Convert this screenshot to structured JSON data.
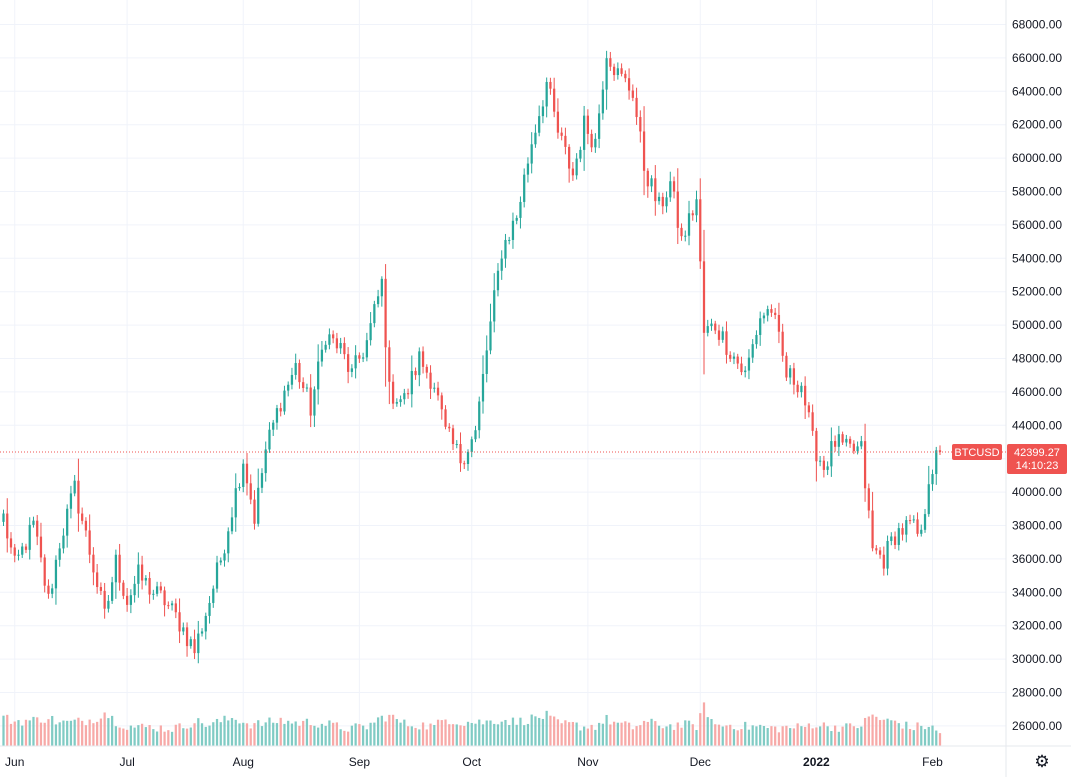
{
  "chart_data": {
    "type": "candlestick",
    "symbol": "BTCUSD",
    "interval": "daily",
    "last_price": "42399.27",
    "countdown": "14:10:23",
    "ylim": [
      24000,
      70000
    ],
    "y_ticks": [
      "26000.00",
      "28000.00",
      "30000.00",
      "32000.00",
      "34000.00",
      "36000.00",
      "38000.00",
      "40000.00",
      "42000.00",
      "44000.00",
      "46000.00",
      "48000.00",
      "50000.00",
      "52000.00",
      "54000.00",
      "56000.00",
      "58000.00",
      "60000.00",
      "62000.00",
      "64000.00",
      "66000.00",
      "68000.00"
    ],
    "x_ticks": [
      {
        "label": "Jun",
        "index": 3
      },
      {
        "label": "Jul",
        "index": 33
      },
      {
        "label": "Aug",
        "index": 64
      },
      {
        "label": "Sep",
        "index": 95
      },
      {
        "label": "Oct",
        "index": 125
      },
      {
        "label": "Nov",
        "index": 156
      },
      {
        "label": "Dec",
        "index": 186
      },
      {
        "label": "2022",
        "index": 217,
        "bold": true
      },
      {
        "label": "Feb",
        "index": 248
      }
    ],
    "anchors": [
      [
        0,
        38500,
        2.6
      ],
      [
        3,
        35500,
        2.2
      ],
      [
        8,
        38000,
        2.3
      ],
      [
        12,
        33500,
        2.6
      ],
      [
        15,
        37000,
        2.0
      ],
      [
        19,
        40200,
        2.1
      ],
      [
        24,
        35500,
        2.4
      ],
      [
        27,
        32500,
        3.2
      ],
      [
        30,
        35800,
        2.2
      ],
      [
        33,
        33500,
        1.7
      ],
      [
        36,
        35000,
        1.5
      ],
      [
        40,
        34000,
        1.6
      ],
      [
        43,
        33500,
        1.4
      ],
      [
        47,
        32200,
        1.5
      ],
      [
        51,
        30500,
        2.2
      ],
      [
        55,
        33500,
        1.8
      ],
      [
        58,
        36000,
        2.2
      ],
      [
        62,
        40000,
        2.6
      ],
      [
        64,
        42000,
        2.1
      ],
      [
        67,
        38500,
        1.8
      ],
      [
        70,
        42500,
        2.0
      ],
      [
        74,
        45500,
        2.3
      ],
      [
        78,
        47500,
        2.0
      ],
      [
        82,
        45000,
        2.1
      ],
      [
        86,
        49500,
        1.9
      ],
      [
        90,
        48500,
        1.5
      ],
      [
        93,
        47000,
        1.4
      ],
      [
        97,
        49000,
        1.6
      ],
      [
        101,
        52500,
        2.6
      ],
      [
        103,
        46000,
        2.8
      ],
      [
        107,
        45500,
        1.9
      ],
      [
        111,
        48000,
        1.8
      ],
      [
        115,
        46500,
        1.6
      ],
      [
        118,
        43500,
        2.5
      ],
      [
        122,
        42000,
        2.1
      ],
      [
        126,
        43500,
        2.1
      ],
      [
        129,
        48500,
        2.1
      ],
      [
        133,
        54500,
        2.4
      ],
      [
        137,
        56500,
        2.1
      ],
      [
        141,
        61000,
        2.5
      ],
      [
        145,
        64500,
        2.8
      ],
      [
        148,
        61500,
        1.9
      ],
      [
        152,
        59000,
        1.8
      ],
      [
        155,
        62000,
        1.6
      ],
      [
        158,
        61000,
        1.7
      ],
      [
        161,
        66500,
        2.4
      ],
      [
        164,
        65000,
        1.9
      ],
      [
        168,
        64000,
        1.5
      ],
      [
        171,
        59500,
        2.1
      ],
      [
        175,
        57000,
        1.8
      ],
      [
        178,
        58500,
        1.7
      ],
      [
        181,
        55000,
        1.8
      ],
      [
        185,
        57500,
        1.7
      ],
      [
        187,
        49500,
        3.8
      ],
      [
        190,
        50000,
        1.7
      ],
      [
        194,
        48500,
        1.8
      ],
      [
        198,
        47000,
        1.6
      ],
      [
        202,
        50500,
        1.6
      ],
      [
        205,
        51000,
        1.4
      ],
      [
        209,
        47000,
        1.5
      ],
      [
        213,
        46500,
        1.5
      ],
      [
        216,
        43000,
        1.9
      ],
      [
        219,
        41500,
        1.7
      ],
      [
        222,
        43000,
        1.6
      ],
      [
        225,
        42500,
        1.5
      ],
      [
        229,
        42500,
        1.8
      ],
      [
        232,
        36500,
        2.9
      ],
      [
        235,
        36000,
        2.2
      ],
      [
        238,
        37500,
        2.2
      ],
      [
        242,
        38000,
        1.5
      ],
      [
        245,
        37200,
        1.6
      ],
      [
        247,
        41000,
        1.7
      ],
      [
        250,
        42400,
        0.8
      ]
    ],
    "volume_scale": 3.0
  },
  "ui": {
    "settings_icon": "gear-icon"
  }
}
